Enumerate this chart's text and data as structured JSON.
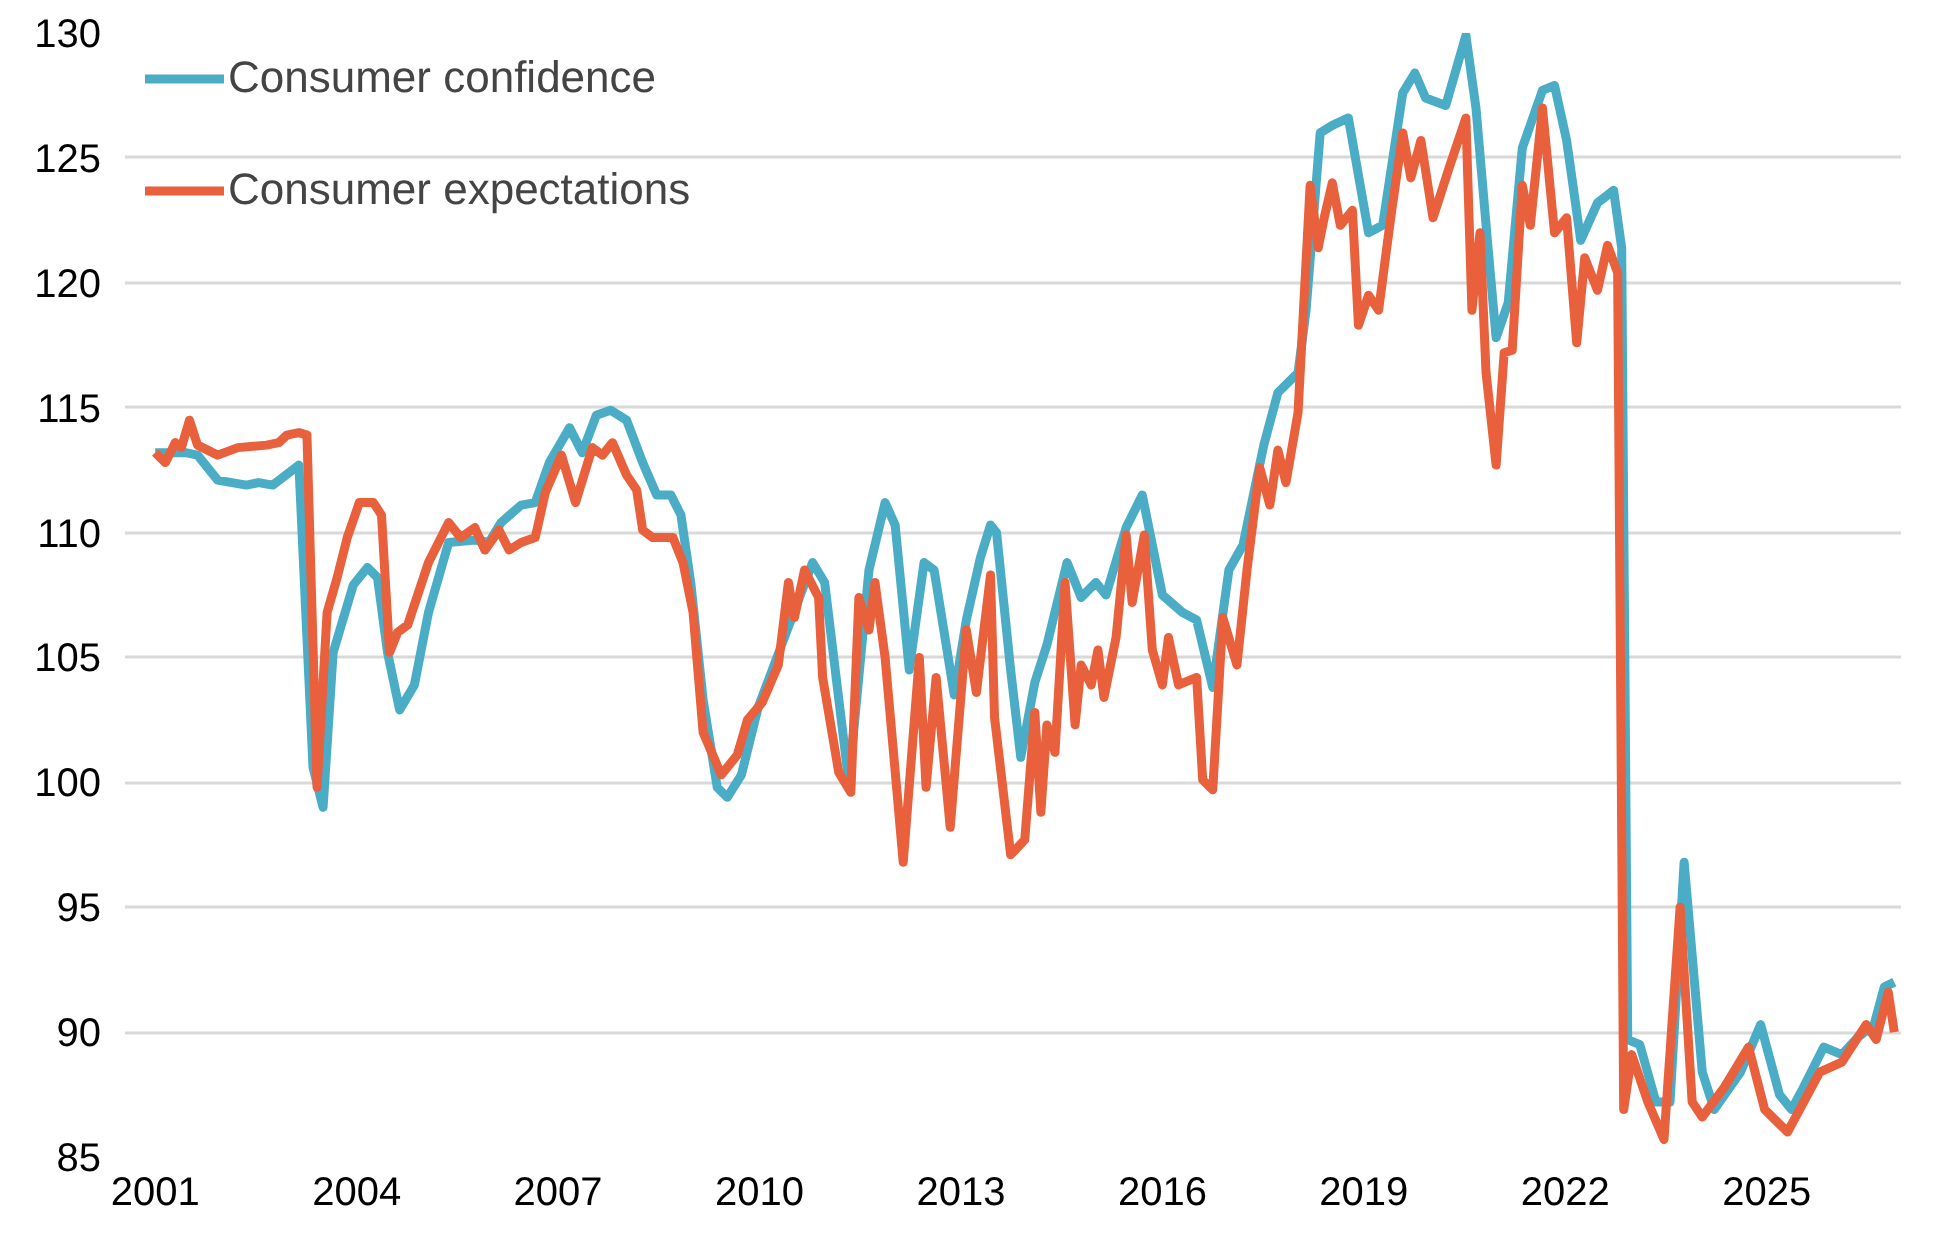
{
  "chart_data": {
    "type": "line",
    "xlim": [
      2000.55,
      2027.0
    ],
    "ylim": [
      85,
      130
    ],
    "xticks": [
      2001,
      2004,
      2007,
      2010,
      2013,
      2016,
      2019,
      2022,
      2025
    ],
    "yticks": [
      85,
      90,
      95,
      100,
      105,
      110,
      115,
      120,
      125,
      130
    ],
    "grid": "y",
    "legend": "top left",
    "line_style": "solid",
    "marker": "none",
    "series": [
      {
        "name": "Consumer confidence",
        "color": "#4bacc6",
        "x": [
          2001.0,
          2001.45,
          2001.63,
          2001.93,
          2002.14,
          2002.36,
          2002.54,
          2002.75,
          2003.14,
          2003.35,
          2003.5,
          2003.65,
          2003.95,
          2004.16,
          2004.31,
          2004.46,
          2004.64,
          2004.86,
          2005.07,
          2005.37,
          2005.76,
          2005.97,
          2006.15,
          2006.45,
          2006.66,
          2006.87,
          2007.17,
          2007.36,
          2007.57,
          2007.78,
          2008.02,
          2008.26,
          2008.47,
          2008.68,
          2008.83,
          2008.98,
          2009.16,
          2009.37,
          2009.52,
          2009.73,
          2009.98,
          2010.79,
          2010.97,
          2011.33,
          2011.63,
          2011.87,
          2012.02,
          2012.23,
          2012.45,
          2012.6,
          2012.9,
          2013.08,
          2013.29,
          2013.44,
          2013.53,
          2013.74,
          2013.89,
          2014.1,
          2014.28,
          2014.58,
          2014.79,
          2015.01,
          2015.16,
          2015.46,
          2015.7,
          2016.0,
          2016.3,
          2016.51,
          2016.75,
          2016.99,
          2017.2,
          2017.51,
          2017.72,
          2018.02,
          2018.14,
          2018.35,
          2018.53,
          2018.77,
          2019.07,
          2019.28,
          2019.58,
          2019.76,
          2019.92,
          2020.22,
          2020.52,
          2020.67,
          2020.85,
          2020.97,
          2021.15,
          2021.36,
          2021.66,
          2021.84,
          2022.02,
          2022.23,
          2022.48,
          2022.72,
          2022.84,
          2022.93,
          2023.11,
          2023.35,
          2023.56,
          2023.77,
          2024.04,
          2024.22,
          2024.61,
          2024.91,
          2025.19,
          2025.37,
          2025.55,
          2025.85,
          2026.12,
          2026.36,
          2026.6,
          2026.75,
          2026.9
        ],
        "values": [
          113.2,
          113.2,
          113.1,
          112.1,
          112.0,
          111.9,
          112.0,
          111.9,
          112.7,
          100.6,
          99.0,
          105.2,
          107.9,
          108.6,
          108.2,
          105.2,
          102.9,
          103.9,
          106.8,
          109.6,
          109.7,
          109.6,
          110.4,
          111.1,
          111.2,
          112.8,
          114.2,
          113.2,
          114.7,
          114.9,
          114.5,
          112.8,
          111.5,
          111.5,
          110.7,
          107.9,
          103.3,
          99.8,
          99.4,
          100.3,
          103.0,
          108.8,
          108.0,
          100.0,
          108.5,
          111.2,
          110.3,
          104.5,
          108.8,
          108.5,
          103.5,
          106.5,
          109.0,
          110.3,
          110.0,
          104.5,
          101.0,
          104.0,
          105.5,
          108.8,
          107.4,
          108.0,
          107.5,
          110.2,
          111.5,
          107.5,
          106.8,
          106.5,
          103.8,
          108.5,
          109.5,
          113.5,
          115.6,
          116.4,
          118.9,
          126.0,
          126.3,
          126.6,
          122.0,
          122.3,
          127.6,
          128.4,
          127.4,
          127.1,
          129.9,
          127.0,
          121.4,
          117.8,
          119.2,
          125.4,
          127.7,
          127.9,
          125.7,
          121.7,
          123.2,
          123.7,
          121.4,
          89.7,
          89.5,
          87.2,
          87.2,
          96.8,
          88.4,
          86.9,
          88.4,
          90.3,
          87.5,
          86.9,
          87.8,
          89.4,
          89.1,
          89.8,
          90.3,
          91.8,
          92.0
        ]
      },
      {
        "name": "Consumer expectations",
        "color": "#e8603c",
        "x": [
          2001.0,
          2001.15,
          2001.3,
          2001.39,
          2001.51,
          2001.63,
          2001.93,
          2002.23,
          2002.66,
          2002.84,
          2002.96,
          2003.14,
          2003.26,
          2003.41,
          2003.56,
          2003.71,
          2003.86,
          2004.04,
          2004.25,
          2004.37,
          2004.49,
          2004.61,
          2004.76,
          2005.07,
          2005.37,
          2005.55,
          2005.76,
          2005.91,
          2006.12,
          2006.27,
          2006.45,
          2006.66,
          2006.81,
          2007.05,
          2007.26,
          2007.51,
          2007.66,
          2007.81,
          2008.02,
          2008.17,
          2008.26,
          2008.41,
          2008.71,
          2008.86,
          2009.01,
          2009.16,
          2009.43,
          2009.67,
          2009.82,
          2010.04,
          2010.28,
          2010.43,
          2010.52,
          2010.67,
          2010.88,
          2010.94,
          2011.18,
          2011.36,
          2011.48,
          2011.63,
          2011.72,
          2011.87,
          2012.14,
          2012.38,
          2012.48,
          2012.63,
          2012.84,
          2013.08,
          2013.23,
          2013.44,
          2013.5,
          2013.74,
          2013.95,
          2014.1,
          2014.19,
          2014.28,
          2014.4,
          2014.55,
          2014.7,
          2014.79,
          2014.94,
          2015.04,
          2015.13,
          2015.31,
          2015.46,
          2015.55,
          2015.73,
          2015.85,
          2016.0,
          2016.09,
          2016.24,
          2016.51,
          2016.6,
          2016.75,
          2016.9,
          2017.11,
          2017.26,
          2017.45,
          2017.6,
          2017.72,
          2017.84,
          2018.02,
          2018.2,
          2018.32,
          2018.41,
          2018.53,
          2018.65,
          2018.83,
          2018.92,
          2019.07,
          2019.22,
          2019.4,
          2019.58,
          2019.7,
          2019.85,
          2020.03,
          2020.27,
          2020.52,
          2020.61,
          2020.73,
          2020.82,
          2020.97,
          2021.09,
          2021.21,
          2021.36,
          2021.48,
          2021.66,
          2021.84,
          2022.02,
          2022.17,
          2022.29,
          2022.48,
          2022.63,
          2022.78,
          2022.87,
          2022.99,
          2023.23,
          2023.47,
          2023.71,
          2023.89,
          2024.04,
          2024.37,
          2024.73,
          2024.97,
          2025.31,
          2025.55,
          2025.79,
          2026.12,
          2026.48,
          2026.63,
          2026.81,
          2026.9
        ],
        "values": [
          113.2,
          112.8,
          113.6,
          113.4,
          114.5,
          113.5,
          113.1,
          113.4,
          113.5,
          113.6,
          113.9,
          114.0,
          113.9,
          99.8,
          106.8,
          108.2,
          109.8,
          111.2,
          111.2,
          110.7,
          105.2,
          106.0,
          106.3,
          108.8,
          110.4,
          109.8,
          110.2,
          109.3,
          110.1,
          109.3,
          109.6,
          109.8,
          111.6,
          113.1,
          111.2,
          113.4,
          113.1,
          113.6,
          112.3,
          111.7,
          110.1,
          109.8,
          109.8,
          108.8,
          106.8,
          102.0,
          100.3,
          101.1,
          102.5,
          103.2,
          104.7,
          108.0,
          106.6,
          108.5,
          107.4,
          104.2,
          100.4,
          99.6,
          107.4,
          106.1,
          108.0,
          105.0,
          96.8,
          105.0,
          99.8,
          104.2,
          98.2,
          106.1,
          103.6,
          108.3,
          102.6,
          97.1,
          97.7,
          102.8,
          98.8,
          102.3,
          101.2,
          108.0,
          102.3,
          104.7,
          103.9,
          105.3,
          103.4,
          105.8,
          109.9,
          107.2,
          109.9,
          105.3,
          103.9,
          105.8,
          103.9,
          104.2,
          100.1,
          99.7,
          106.6,
          104.7,
          108.5,
          112.6,
          111.1,
          113.3,
          112.0,
          114.8,
          123.9,
          121.4,
          122.6,
          124.0,
          122.3,
          122.9,
          118.3,
          119.5,
          118.9,
          122.6,
          126.0,
          124.2,
          125.7,
          122.6,
          124.6,
          126.6,
          118.9,
          122.0,
          116.4,
          112.7,
          117.2,
          117.3,
          123.9,
          122.3,
          127.0,
          122.0,
          122.6,
          117.6,
          121.0,
          119.7,
          121.5,
          120.4,
          86.9,
          89.1,
          87.2,
          85.7,
          95.0,
          87.2,
          86.6,
          87.8,
          89.4,
          86.9,
          86.0,
          87.2,
          88.4,
          88.8,
          90.3,
          89.7,
          91.6,
          90.0
        ]
      }
    ]
  }
}
